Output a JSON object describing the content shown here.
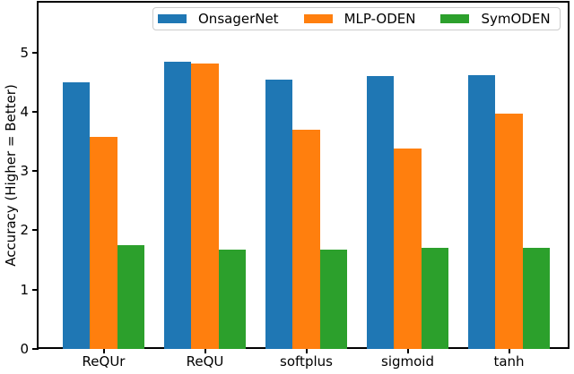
{
  "chart_data": {
    "type": "bar",
    "title": "",
    "xlabel": "",
    "ylabel": "Accuracy (Higher = Better)",
    "categories": [
      "ReQUr",
      "ReQU",
      "softplus",
      "sigmoid",
      "tanh"
    ],
    "series": [
      {
        "name": "OnsagerNet",
        "color": "#1f77b4",
        "values": [
          4.49,
          4.85,
          4.54,
          4.61,
          4.62
        ]
      },
      {
        "name": "MLP-ODEN",
        "color": "#ff7f0e",
        "values": [
          3.58,
          4.81,
          3.69,
          3.38,
          3.97
        ]
      },
      {
        "name": "SymODEN",
        "color": "#2ca02c",
        "values": [
          1.75,
          1.67,
          1.68,
          1.71,
          1.7
        ]
      }
    ],
    "yticks": [
      0,
      1,
      2,
      3,
      4,
      5
    ],
    "ylim": [
      0,
      5.84
    ],
    "grid": false,
    "legend": {
      "position": "upper center",
      "labels": [
        "OnsagerNet",
        "MLP-ODEN",
        "SymODEN"
      ]
    },
    "axis_color": "#000000",
    "background_color": "#ffffff"
  }
}
